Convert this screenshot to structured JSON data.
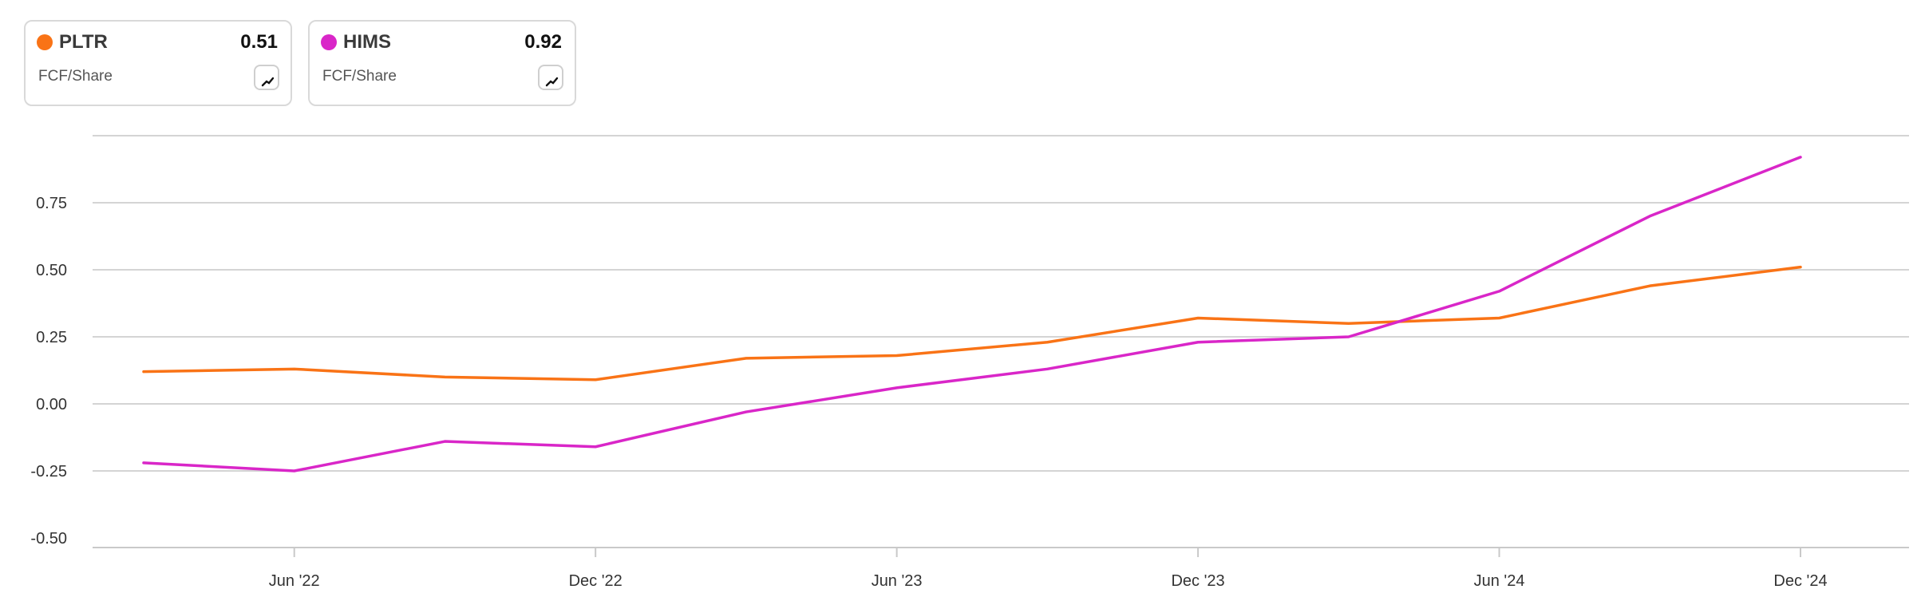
{
  "legend": [
    {
      "ticker": "PLTR",
      "value": "0.51",
      "metric": "FCF/Share",
      "color": "#f97316",
      "icon": "trend-chart-icon"
    },
    {
      "ticker": "HIMS",
      "value": "0.92",
      "metric": "FCF/Share",
      "color": "#d926c8",
      "icon": "trend-chart-icon"
    }
  ],
  "chart_data": {
    "type": "line",
    "title": "",
    "xlabel": "",
    "ylabel": "",
    "x": [
      "Mar '22",
      "Jun '22",
      "Sep '22",
      "Dec '22",
      "Mar '23",
      "Jun '23",
      "Sep '23",
      "Dec '23",
      "Mar '24",
      "Jun '24",
      "Sep '24",
      "Dec '24"
    ],
    "x_tick_labels": [
      "Jun '22",
      "Dec '22",
      "Jun '23",
      "Dec '23",
      "Jun '24",
      "Dec '24"
    ],
    "y_tick_labels": [
      "0.75",
      "0.50",
      "0.25",
      "0.00",
      "-0.25",
      "-0.50"
    ],
    "ylim": [
      -0.5,
      1.0
    ],
    "grid": true,
    "series": [
      {
        "name": "PLTR",
        "color": "#f97316",
        "values": [
          0.12,
          0.13,
          0.1,
          0.09,
          0.17,
          0.18,
          0.23,
          0.32,
          0.3,
          0.32,
          0.44,
          0.51
        ]
      },
      {
        "name": "HIMS",
        "color": "#d926c8",
        "values": [
          -0.22,
          -0.25,
          -0.14,
          -0.16,
          -0.03,
          0.06,
          0.13,
          0.23,
          0.25,
          0.42,
          0.7,
          0.92
        ]
      }
    ]
  }
}
